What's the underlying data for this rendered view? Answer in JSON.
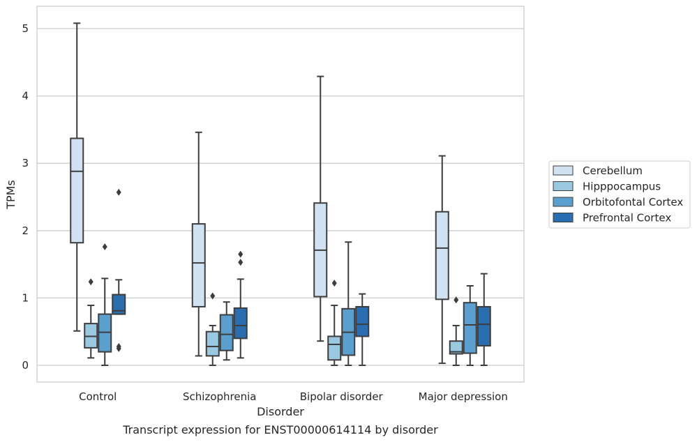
{
  "chart_data": {
    "type": "box",
    "xlabel": "Disorder",
    "ylabel": "TPMs",
    "caption": "Transcript expression for ENST00000614114 by disorder",
    "categories": [
      "Control",
      "Schizophrenia",
      "Bipolar disorder",
      "Major depression"
    ],
    "yticks": [
      0,
      1,
      2,
      3,
      4,
      5
    ],
    "ylim": [
      -0.25,
      5.35
    ],
    "grid": true,
    "legend_position": "right",
    "series": [
      {
        "name": "Cerebellum",
        "color": "#d1e2f2",
        "boxes": [
          {
            "whislo": 0.51,
            "q1": 1.82,
            "med": 2.88,
            "q3": 3.37,
            "whishi": 5.08,
            "fliers": []
          },
          {
            "whislo": 0.14,
            "q1": 0.87,
            "med": 1.52,
            "q3": 2.1,
            "whishi": 3.46,
            "fliers": []
          },
          {
            "whislo": 0.36,
            "q1": 1.02,
            "med": 1.71,
            "q3": 2.41,
            "whishi": 4.29,
            "fliers": []
          },
          {
            "whislo": 0.03,
            "q1": 0.98,
            "med": 1.74,
            "q3": 2.28,
            "whishi": 3.11,
            "fliers": []
          }
        ]
      },
      {
        "name": "Hipppocampus",
        "color": "#9ac8e0",
        "boxes": [
          {
            "whislo": 0.11,
            "q1": 0.26,
            "med": 0.43,
            "q3": 0.62,
            "whishi": 0.89,
            "fliers": [
              1.24
            ]
          },
          {
            "whislo": 0.0,
            "q1": 0.14,
            "med": 0.28,
            "q3": 0.5,
            "whishi": 0.59,
            "fliers": [
              1.03
            ]
          },
          {
            "whislo": 0.0,
            "q1": 0.08,
            "med": 0.31,
            "q3": 0.43,
            "whishi": 0.89,
            "fliers": [
              1.22
            ]
          },
          {
            "whislo": 0.0,
            "q1": 0.17,
            "med": 0.2,
            "q3": 0.36,
            "whishi": 0.59,
            "fliers": [
              0.97
            ]
          }
        ]
      },
      {
        "name": "Orbitofontal Cortex",
        "color": "#5a9fcd",
        "boxes": [
          {
            "whislo": 0.0,
            "q1": 0.2,
            "med": 0.49,
            "q3": 0.76,
            "whishi": 1.29,
            "fliers": [
              1.76
            ]
          },
          {
            "whislo": 0.08,
            "q1": 0.22,
            "med": 0.46,
            "q3": 0.75,
            "whishi": 0.94,
            "fliers": []
          },
          {
            "whislo": 0.0,
            "q1": 0.15,
            "med": 0.49,
            "q3": 0.84,
            "whishi": 1.83,
            "fliers": []
          },
          {
            "whislo": 0.0,
            "q1": 0.18,
            "med": 0.6,
            "q3": 0.93,
            "whishi": 1.18,
            "fliers": []
          }
        ]
      },
      {
        "name": "Prefrontal Cortex",
        "color": "#2a6eb0",
        "boxes": [
          {
            "whislo": 0.76,
            "q1": 0.76,
            "med": 0.81,
            "q3": 1.05,
            "whishi": 1.27,
            "fliers": [
              2.57,
              0.28,
              0.25
            ]
          },
          {
            "whislo": 0.11,
            "q1": 0.4,
            "med": 0.59,
            "q3": 0.85,
            "whishi": 1.28,
            "fliers": [
              1.65,
              1.53
            ]
          },
          {
            "whislo": 0.0,
            "q1": 0.43,
            "med": 0.61,
            "q3": 0.87,
            "whishi": 1.06,
            "fliers": []
          },
          {
            "whislo": 0.0,
            "q1": 0.29,
            "med": 0.61,
            "q3": 0.87,
            "whishi": 1.36,
            "fliers": []
          }
        ]
      }
    ]
  }
}
